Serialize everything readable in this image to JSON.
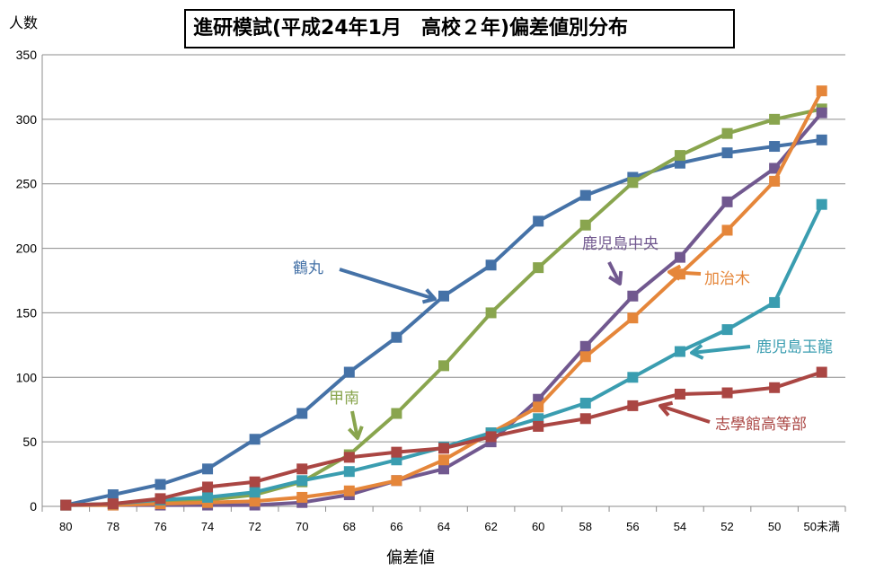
{
  "chart_data": {
    "type": "line",
    "title": "進研模試(平成24年1月　高校２年)偏差値別分布",
    "ylabel": "人数",
    "xlabel": "偏差値",
    "categories": [
      "80",
      "78",
      "76",
      "74",
      "72",
      "70",
      "68",
      "66",
      "64",
      "62",
      "60",
      "58",
      "56",
      "54",
      "52",
      "50",
      "50未満"
    ],
    "ylim": [
      0,
      350
    ],
    "yticks": [
      0,
      50,
      100,
      150,
      200,
      250,
      300,
      350
    ],
    "grid": true,
    "series": [
      {
        "name": "鶴丸",
        "color": "#4572A7",
        "values": [
          1,
          9,
          17,
          29,
          52,
          72,
          104,
          131,
          163,
          187,
          221,
          241,
          255,
          266,
          274,
          279,
          284
        ]
      },
      {
        "name": "甲南",
        "color": "#89A54E",
        "values": [
          1,
          2,
          4,
          5,
          9,
          19,
          40,
          72,
          109,
          150,
          185,
          218,
          251,
          272,
          289,
          300,
          308
        ]
      },
      {
        "name": "鹿児島中央",
        "color": "#71588F",
        "values": [
          1,
          1,
          1,
          1,
          1,
          3,
          9,
          20,
          29,
          50,
          83,
          124,
          163,
          193,
          236,
          262,
          305
        ]
      },
      {
        "name": "加治木",
        "color": "#E5863A",
        "values": [
          1,
          1,
          2,
          3,
          4,
          7,
          12,
          20,
          36,
          57,
          77,
          116,
          146,
          180,
          214,
          252,
          322
        ]
      },
      {
        "name": "鹿児島玉龍",
        "color": "#3A9DB0",
        "values": [
          1,
          2,
          5,
          7,
          11,
          20,
          27,
          36,
          46,
          57,
          68,
          80,
          100,
          120,
          137,
          158,
          234
        ]
      },
      {
        "name": "志學館高等部",
        "color": "#AA4643",
        "values": [
          1,
          2,
          6,
          15,
          19,
          29,
          38,
          42,
          45,
          54,
          62,
          68,
          78,
          87,
          88,
          92,
          104
        ]
      }
    ]
  }
}
